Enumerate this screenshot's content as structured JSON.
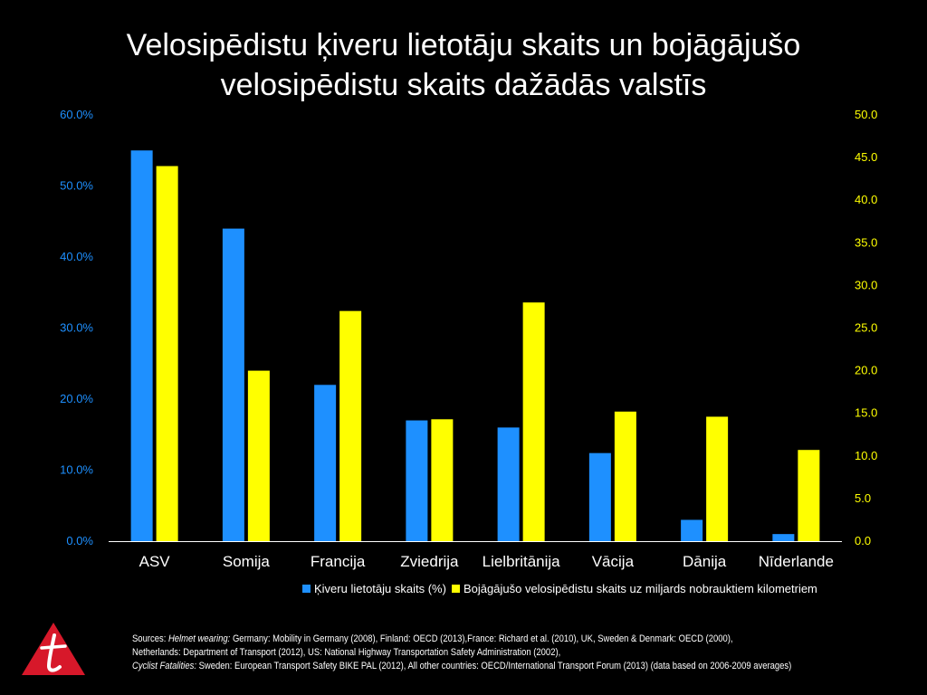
{
  "title": {
    "line1": "Velosipēdistu ķiveru lietotāju skaits un bojāgājušo",
    "line2": "velosipēdistu skaits dažādās valstīs"
  },
  "chart_data": {
    "type": "bar",
    "categories": [
      "ASV",
      "Somija",
      "Francija",
      "Zviedrija",
      "Lielbritānija",
      "Vācija",
      "Dānija",
      "Nīderlande"
    ],
    "series": [
      {
        "name": "Ķiveru lietotāju skaits (%)",
        "axis": "left",
        "color": "#1E90FF",
        "values": [
          55.0,
          44.0,
          22.0,
          17.0,
          16.0,
          12.4,
          3.0,
          1.0
        ]
      },
      {
        "name": "Bojāgājušo velosipēdistu skaits uz miljards nobrauktiem kilometriem",
        "axis": "right",
        "color": "#FFFF00",
        "values": [
          44.0,
          20.0,
          27.0,
          14.3,
          28.0,
          15.2,
          14.6,
          10.7
        ]
      }
    ],
    "y_left": {
      "ylim": [
        0,
        60
      ],
      "ticks": [
        0,
        10,
        20,
        30,
        40,
        50,
        60
      ],
      "tick_labels": [
        "0.0%",
        "10.0%",
        "20.0%",
        "30.0%",
        "40.0%",
        "50.0%",
        "60.0%"
      ],
      "color": "#1E90FF"
    },
    "y_right": {
      "ylim": [
        0,
        50
      ],
      "ticks": [
        0,
        5,
        10,
        15,
        20,
        25,
        30,
        35,
        40,
        45,
        50
      ],
      "tick_labels": [
        "0.0",
        "5.0",
        "10.0",
        "15.0",
        "20.0",
        "25.0",
        "30.0",
        "35.0",
        "40.0",
        "45.0",
        "50.0"
      ],
      "color": "#FFFF00"
    },
    "grid": false,
    "legend": "bottom-right"
  },
  "sources": {
    "line1_label": "Sources: ",
    "line1_italic": "Helmet wearing:",
    "line1_text": " Germany: Mobility in Germany (2008), Finland: OECD (2013),France: Richard et al. (2010), UK, Sweden & Denmark: OECD (2000),",
    "line2_text": "Netherlands: Department of Transport (2012),  US: National Highway Transportation Safety Administration (2002),",
    "line3_italic": "Cyclist Fatalities:",
    "line3_text": " Sweden:  European Transport Safety BIKE PAL (2012),  All other countries: OECD/International Transport Forum (2013) (data based on 2006-2009 averages)"
  },
  "logo": {
    "icon": "t-logo-icon",
    "color": "#D7182A"
  }
}
